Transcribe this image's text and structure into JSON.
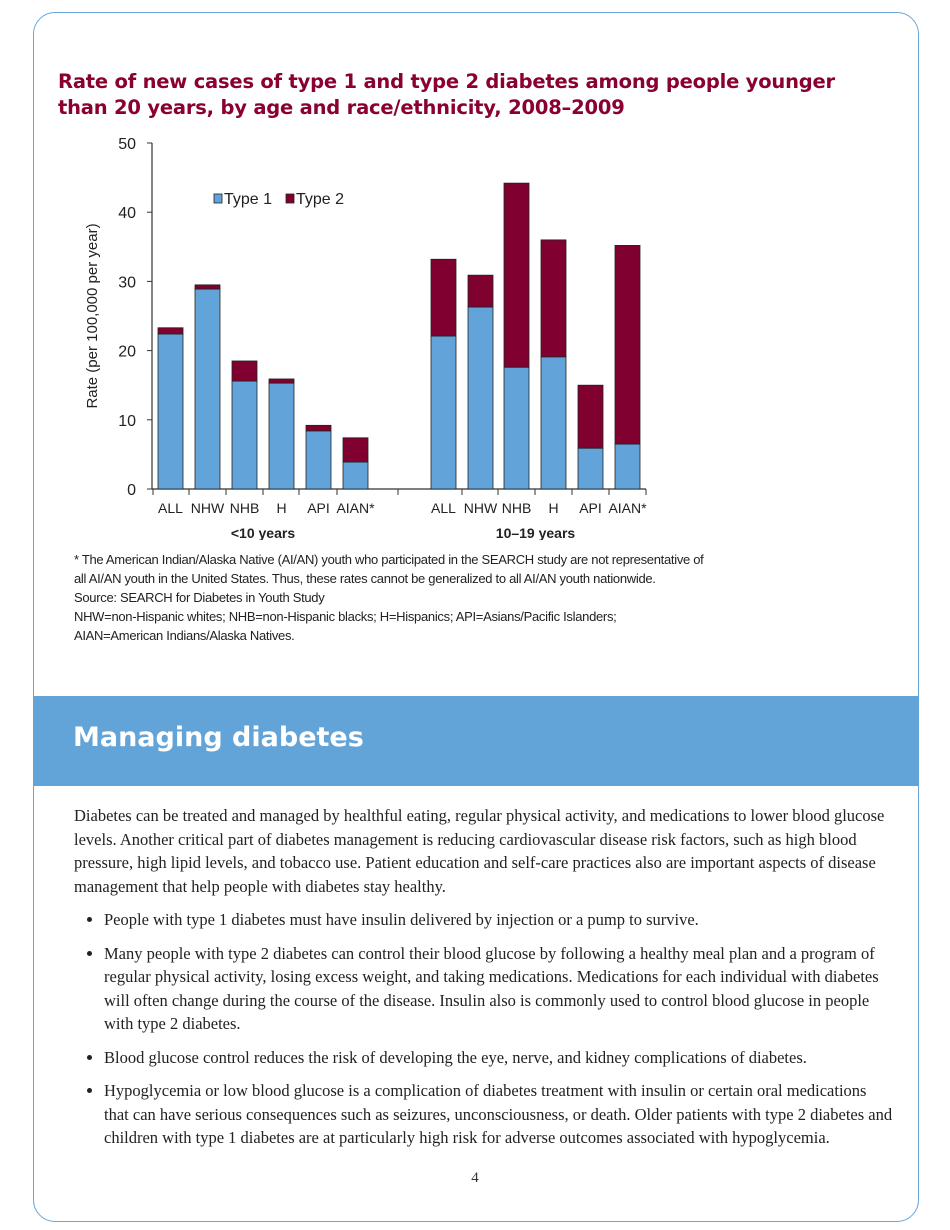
{
  "chart_data": {
    "type": "bar",
    "stacked": true,
    "title": "Rate of new cases of type 1 and type 2 diabetes among people younger than 20 years, by age and race/ethnicity, 2008–2009",
    "ylabel": "Rate (per 100,000 per year)",
    "ylim": [
      0,
      50
    ],
    "yticks": [
      0,
      10,
      20,
      30,
      40,
      50
    ],
    "legend_position": "top-left",
    "groups": [
      {
        "label": "<10 years",
        "categories": [
          "ALL",
          "NHW",
          "NHB",
          "H",
          "API",
          "AIAN*"
        ]
      },
      {
        "label": "10–19 years",
        "categories": [
          "ALL",
          "NHW",
          "NHB",
          "H",
          "API",
          "AIAN*"
        ]
      }
    ],
    "series": [
      {
        "name": "Type 1",
        "color": "#62a3d9",
        "values": [
          [
            22.4,
            28.9,
            15.6,
            15.3,
            8.4,
            3.9
          ],
          [
            22.1,
            26.3,
            17.6,
            19.1,
            5.9,
            6.5
          ]
        ]
      },
      {
        "name": "Type 2",
        "color": "#800030",
        "values": [
          [
            0.9,
            0.6,
            2.9,
            0.6,
            0.8,
            3.5
          ],
          [
            11.1,
            4.6,
            26.6,
            16.9,
            9.1,
            28.7
          ]
        ]
      }
    ]
  },
  "notes": [
    "* The American Indian/Alaska Native (AI/AN) youth who participated in the SEARCH study are not representative of",
    "all AI/AN youth in the United States. Thus, these rates cannot be generalized to all AI/AN youth nationwide.",
    "Source: SEARCH for Diabetes in Youth Study",
    "NHW=non-Hispanic whites; NHB=non-Hispanic blacks; H=Hispanics; API=Asians/Pacific Islanders;",
    "AIAN=American Indians/Alaska Natives."
  ],
  "section": {
    "heading": "Managing diabetes",
    "intro": "Diabetes can be treated and managed by healthful eating, regular physical activity, and medications to lower blood glucose levels. Another critical part of diabetes management is reducing cardiovascular disease risk factors, such as high blood pressure, high lipid levels, and tobacco use. Patient education and self-care practices also are important aspects of disease management that help people with diabetes stay healthy.",
    "bullets": [
      "People with type 1 diabetes must have insulin delivered by injection or a pump to survive.",
      "Many people with type 2 diabetes can control their blood glucose by following a healthy meal plan and a program of regular physical activity, losing excess weight, and taking medications. Medications for each individual with diabetes will often change during the course of the disease. Insulin also is commonly used to control blood glucose in people with type 2 diabetes.",
      "Blood glucose control reduces the risk of developing the eye, nerve, and kidney complications of diabetes.",
      "Hypoglycemia or low blood glucose is a complication of diabetes treatment with insulin or certain oral medications that can have serious consequences such as seizures, unconsciousness, or death. Older patients with type 2 diabetes and children with type 1 diabetes are at particularly high risk for adverse outcomes associated with hypoglycemia."
    ]
  },
  "page_number": "4"
}
